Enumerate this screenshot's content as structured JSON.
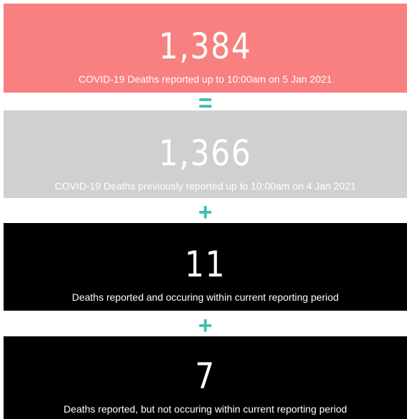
{
  "cards": [
    {
      "value": "1,384",
      "label": "COVID-19 Deaths reported up to 10:00am on 5 Jan 2021"
    },
    {
      "value": "1,366",
      "label": "COVID-19 Deaths previously reported up to 10:00am on 4 Jan 2021"
    },
    {
      "value": "11",
      "label": "Deaths reported and occuring within current reporting period"
    },
    {
      "value": "7",
      "label": "Deaths reported, but not occuring within current reporting period"
    }
  ],
  "operators": [
    "=",
    "+",
    "+"
  ]
}
